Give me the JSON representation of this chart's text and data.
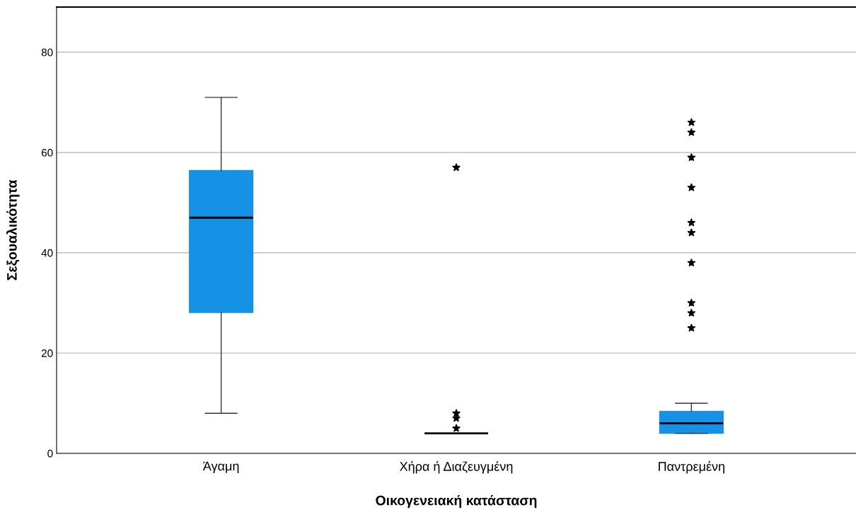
{
  "chart_data": {
    "type": "box",
    "xlabel": "Οικογενειακή κατάσταση",
    "ylabel": "Σεξουαλικότητα",
    "categories": [
      "Άγαμη",
      "Χήρα ή Διαζευγμένη",
      "Παντρεμένη"
    ],
    "boxes": [
      {
        "low": 8,
        "q1": 28.1,
        "median": 47,
        "q3": 56.4,
        "high": 71
      },
      {
        "low": 4,
        "q1": 4,
        "median": 4,
        "q3": 4,
        "high": 4,
        "outliers": [
          57,
          8,
          7,
          5
        ]
      },
      {
        "low": 4,
        "q1": 4,
        "median": 6,
        "q3": 8.4,
        "high": 10,
        "outliers": [
          66,
          64,
          59,
          53,
          46,
          44,
          38,
          30,
          28,
          25
        ]
      }
    ],
    "color": "#1591e6",
    "ylim": [
      0,
      89
    ],
    "yticks": [
      0,
      20,
      40,
      60,
      80
    ],
    "grid": "y",
    "marker": "star"
  }
}
